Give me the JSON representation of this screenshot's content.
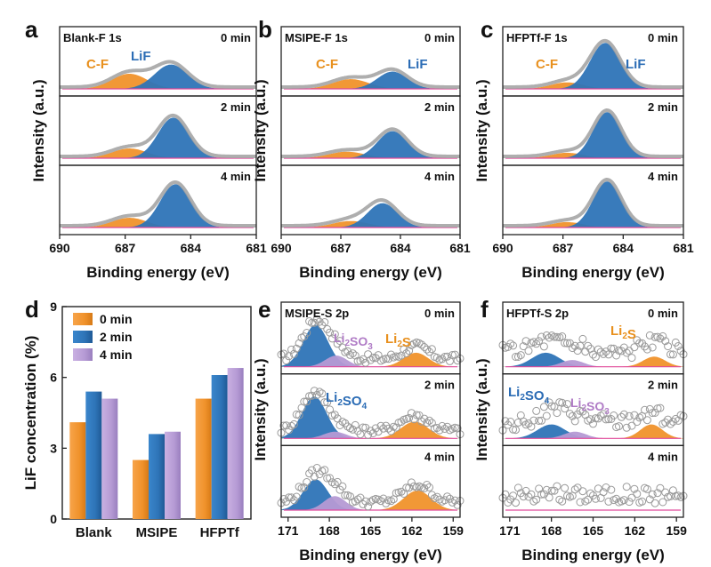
{
  "colors": {
    "orange": "#f0922b",
    "blue": "#2e74b7",
    "purple": "#b59ad4",
    "pink_baseline": "#e0499a",
    "envelope": "#a0a0a0",
    "circle": "#9a9a9a"
  },
  "panels": {
    "a": {
      "letter": "a",
      "title": "Blank-F 1s",
      "peak_labels": [
        "C-F",
        "LiF"
      ]
    },
    "b": {
      "letter": "b",
      "title": "MSIPE-F 1s",
      "peak_labels": [
        "C-F",
        "LiF"
      ]
    },
    "c": {
      "letter": "c",
      "title": "HFPTf-F 1s",
      "peak_labels": [
        "C-F",
        "LiF"
      ]
    },
    "d": {
      "letter": "d"
    },
    "e": {
      "letter": "e",
      "title": "MSIPE-S 2p"
    },
    "f": {
      "letter": "f",
      "title": "HFPTf-S 2p"
    }
  },
  "time_labels": [
    "0 min",
    "2 min",
    "4 min"
  ],
  "axis_text": {
    "intensity": "Intensity (a.u.)",
    "binding": "Binding energy (eV)",
    "lif_conc": "LiF concentration (%)"
  },
  "species": {
    "li2so3_prefix": "Li",
    "li2so3_sub1": "2",
    "li2so3_mid": "SO",
    "li2so3_sub2": "3",
    "li2so4_prefix": "Li",
    "li2so4_sub1": "2",
    "li2so4_mid": "SO",
    "li2so4_sub2": "4",
    "li2s_prefix": "Li",
    "li2s_sub": "2",
    "li2s_suffix": "S"
  },
  "chart_data": [
    {
      "panel": "a",
      "type": "line",
      "title": "Blank-F 1s",
      "xlabel": "Binding energy (eV)",
      "ylabel": "Intensity (a.u.)",
      "xlim": [
        690,
        681
      ],
      "xticks": [
        "690",
        "687",
        "684",
        "681"
      ],
      "series": [
        {
          "name": "0 min",
          "components": [
            {
              "name": "C-F",
              "center": 686.8,
              "height": 0.28,
              "width": 0.8
            },
            {
              "name": "LiF",
              "center": 684.9,
              "height": 0.45,
              "width": 0.75
            }
          ]
        },
        {
          "name": "2 min",
          "components": [
            {
              "name": "C-F",
              "center": 686.8,
              "height": 0.18,
              "width": 0.8
            },
            {
              "name": "LiF",
              "center": 684.8,
              "height": 0.75,
              "width": 0.7
            }
          ]
        },
        {
          "name": "4 min",
          "components": [
            {
              "name": "C-F",
              "center": 686.8,
              "height": 0.18,
              "width": 0.8
            },
            {
              "name": "LiF",
              "center": 684.7,
              "height": 0.8,
              "width": 0.7
            }
          ]
        }
      ]
    },
    {
      "panel": "b",
      "type": "line",
      "title": "MSIPE-F 1s",
      "xlabel": "Binding energy (eV)",
      "ylabel": "Intensity (a.u.)",
      "xlim": [
        690,
        681
      ],
      "xticks": [
        "690",
        "687",
        "684",
        "681"
      ],
      "series": [
        {
          "name": "0 min",
          "components": [
            {
              "name": "C-F",
              "center": 686.5,
              "height": 0.18,
              "width": 0.9
            },
            {
              "name": "LiF",
              "center": 684.4,
              "height": 0.32,
              "width": 0.75
            }
          ]
        },
        {
          "name": "2 min",
          "components": [
            {
              "name": "C-F",
              "center": 686.7,
              "height": 0.12,
              "width": 0.9
            },
            {
              "name": "LiF",
              "center": 684.4,
              "height": 0.5,
              "width": 0.75
            }
          ]
        },
        {
          "name": "4 min",
          "components": [
            {
              "name": "C-F",
              "center": 686.5,
              "height": 0.12,
              "width": 0.9
            },
            {
              "name": "LiF",
              "center": 684.9,
              "height": 0.45,
              "width": 0.75
            }
          ]
        }
      ]
    },
    {
      "panel": "c",
      "type": "line",
      "title": "HFPTf-F 1s",
      "xlabel": "Binding energy (eV)",
      "ylabel": "Intensity (a.u.)",
      "xlim": [
        690,
        681
      ],
      "xticks": [
        "690",
        "687",
        "684",
        "681"
      ],
      "series": [
        {
          "name": "0 min",
          "components": [
            {
              "name": "C-F",
              "center": 686.8,
              "height": 0.12,
              "width": 0.8
            },
            {
              "name": "LiF",
              "center": 684.9,
              "height": 0.85,
              "width": 0.75
            }
          ]
        },
        {
          "name": "2 min",
          "components": [
            {
              "name": "C-F",
              "center": 686.8,
              "height": 0.1,
              "width": 0.8
            },
            {
              "name": "LiF",
              "center": 684.8,
              "height": 0.85,
              "width": 0.7
            }
          ]
        },
        {
          "name": "4 min",
          "components": [
            {
              "name": "C-F",
              "center": 686.8,
              "height": 0.1,
              "width": 0.8
            },
            {
              "name": "LiF",
              "center": 684.8,
              "height": 0.85,
              "width": 0.7
            }
          ]
        }
      ]
    },
    {
      "panel": "d",
      "type": "bar",
      "categories": [
        "Blank",
        "MSIPE",
        "HFPTf"
      ],
      "series": [
        {
          "name": "0 min",
          "values": [
            4.1,
            2.5,
            5.1
          ]
        },
        {
          "name": "2 min",
          "values": [
            5.4,
            3.6,
            6.1
          ]
        },
        {
          "name": "4 min",
          "values": [
            5.1,
            3.7,
            6.4
          ]
        }
      ],
      "ylabel": "LiF concentration (%)",
      "ylim": [
        0,
        9
      ],
      "yticks": [
        "0",
        "3",
        "6",
        "9"
      ]
    },
    {
      "panel": "e",
      "type": "scatter",
      "title": "MSIPE-S 2p",
      "xlabel": "Binding energy (eV)",
      "ylabel": "Intensity (a.u.)",
      "xlim": [
        171.5,
        158.5
      ],
      "xticks": [
        "171",
        "168",
        "165",
        "162",
        "159"
      ],
      "series": [
        {
          "name": "0 min",
          "components": [
            {
              "name": "Li2SO4",
              "center": 169.0,
              "height": 0.75,
              "width": 0.9
            },
            {
              "name": "Li2SO3",
              "center": 167.5,
              "height": 0.2,
              "width": 0.8
            },
            {
              "name": "Li2S",
              "center": 161.7,
              "height": 0.25,
              "width": 0.9
            }
          ]
        },
        {
          "name": "2 min",
          "components": [
            {
              "name": "Li2SO4",
              "center": 169.1,
              "height": 0.75,
              "width": 0.9
            },
            {
              "name": "Li2SO3",
              "center": 167.6,
              "height": 0.12,
              "width": 0.8
            },
            {
              "name": "Li2S",
              "center": 161.8,
              "height": 0.3,
              "width": 1.0
            }
          ]
        },
        {
          "name": "4 min",
          "components": [
            {
              "name": "Li2SO4",
              "center": 169.0,
              "height": 0.55,
              "width": 0.9
            },
            {
              "name": "Li2SO3",
              "center": 167.6,
              "height": 0.25,
              "width": 0.8
            },
            {
              "name": "Li2S",
              "center": 161.6,
              "height": 0.35,
              "width": 1.0
            }
          ]
        }
      ]
    },
    {
      "panel": "f",
      "type": "scatter",
      "title": "HFPTf-S 2p",
      "xlabel": "Binding energy (eV)",
      "ylabel": "Intensity (a.u.)",
      "xlim": [
        171.5,
        158.5
      ],
      "xticks": [
        "171",
        "168",
        "165",
        "162",
        "159"
      ],
      "series": [
        {
          "name": "0 min",
          "components": [
            {
              "name": "Li2SO4",
              "center": 168.4,
              "height": 0.25,
              "width": 1.0
            },
            {
              "name": "Li2SO3",
              "center": 166.5,
              "height": 0.12,
              "width": 0.8
            },
            {
              "name": "Li2S",
              "center": 160.6,
              "height": 0.18,
              "width": 0.8
            }
          ]
        },
        {
          "name": "2 min",
          "components": [
            {
              "name": "Li2SO4",
              "center": 168.0,
              "height": 0.25,
              "width": 1.0
            },
            {
              "name": "Li2SO3",
              "center": 166.3,
              "height": 0.12,
              "width": 0.8
            },
            {
              "name": "Li2S",
              "center": 160.8,
              "height": 0.25,
              "width": 0.8
            }
          ]
        },
        {
          "name": "4 min",
          "components": []
        }
      ]
    }
  ]
}
